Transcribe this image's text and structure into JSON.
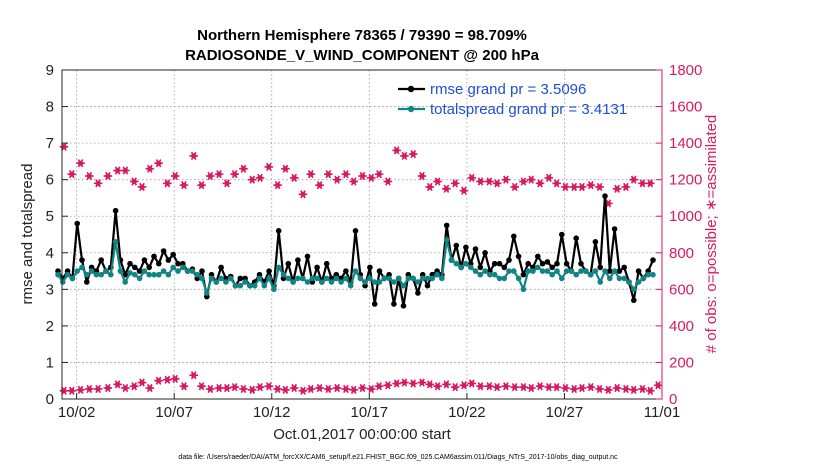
{
  "chart_data": {
    "type": "line",
    "title": "Northern Hemisphere 78365 / 79390 = 98.709%",
    "subtitle": "RADIOSONDE_V_WIND_COMPONENT @ 200 hPa",
    "xlabel": "Oct.01,2017 00:00:00 start",
    "ylabel": "rmse and totalspread",
    "y2label": "# of obs: o=possible; ∗=assimilated",
    "footer": "data file: /Users/raeder/DAI/ATM_forcXX/CAM6_setup/f.e21.FHIST_BGC.f09_025.CAM6assim.011/Diags_NTrS_2017-10/obs_diag_output.nc",
    "x_tick_labels": [
      "10/02",
      "10/07",
      "10/12",
      "10/17",
      "10/22",
      "10/27",
      "11/01"
    ],
    "x_tick_days": [
      2,
      7,
      12,
      17,
      22,
      27,
      32
    ],
    "xlim": [
      1.25,
      32
    ],
    "ylim": [
      0,
      9
    ],
    "y_ticks": [
      0,
      1,
      2,
      3,
      4,
      5,
      6,
      7,
      8,
      9
    ],
    "y2lim": [
      0,
      1800
    ],
    "y2_ticks": [
      0,
      200,
      400,
      600,
      800,
      1000,
      1200,
      1400,
      1600,
      1800
    ],
    "grid": true,
    "legend_position": "top-right",
    "series": [
      {
        "name": "rmse grand pr = 3.5096",
        "axis": "left",
        "color": "#000000",
        "values": [
          3.5,
          3.3,
          3.5,
          3.3,
          4.8,
          3.8,
          3.2,
          3.6,
          3.5,
          3.8,
          3.5,
          3.6,
          5.15,
          3.8,
          3.4,
          3.7,
          3.6,
          3.5,
          3.8,
          3.6,
          3.9,
          3.7,
          4.05,
          3.8,
          3.95,
          3.7,
          3.7,
          3.5,
          3.55,
          3.3,
          3.5,
          2.8,
          3.4,
          3.2,
          3.6,
          3.3,
          3.35,
          3.1,
          3.3,
          3.3,
          3.1,
          3.2,
          3.4,
          3.2,
          3.5,
          3.1,
          4.6,
          3.3,
          3.7,
          3.2,
          3.8,
          3.3,
          3.9,
          3.2,
          3.6,
          3.2,
          3.7,
          3.3,
          3.4,
          3.3,
          3.5,
          3.2,
          4.6,
          3.4,
          3.1,
          3.6,
          2.6,
          3.5,
          3.3,
          3.4,
          2.6,
          3.3,
          2.55,
          3.4,
          3.3,
          2.9,
          3.4,
          3.1,
          3.4,
          3.5,
          3.4,
          4.75,
          3.8,
          4.2,
          3.6,
          4.15,
          3.7,
          4.1,
          3.6,
          4.0,
          3.5,
          3.7,
          3.7,
          3.6,
          3.8,
          4.45,
          3.9,
          3.4,
          3.7,
          3.6,
          3.9,
          3.7,
          3.75,
          3.6,
          3.7,
          4.5,
          3.7,
          3.5,
          4.4,
          3.7,
          3.5,
          3.4,
          4.3,
          3.6,
          5.55,
          3.5,
          4.65,
          3.5,
          3.6,
          3.2,
          2.7,
          3.5,
          3.3,
          3.5,
          3.8
        ]
      },
      {
        "name": "totalspread grand pr = 3.4131",
        "axis": "left",
        "color": "#138484",
        "values": [
          3.4,
          3.2,
          3.4,
          3.3,
          3.5,
          3.6,
          3.4,
          3.5,
          3.4,
          3.4,
          3.5,
          3.4,
          4.3,
          3.5,
          3.2,
          3.45,
          3.4,
          3.3,
          3.5,
          3.4,
          3.4,
          3.4,
          3.5,
          3.4,
          3.6,
          3.5,
          3.6,
          3.5,
          3.5,
          3.4,
          3.3,
          2.9,
          3.3,
          3.2,
          3.3,
          3.2,
          3.3,
          3.1,
          3.1,
          3.2,
          3.1,
          3.1,
          3.3,
          3.1,
          3.3,
          3.0,
          3.6,
          3.4,
          3.3,
          3.2,
          3.3,
          3.3,
          3.2,
          3.3,
          3.3,
          3.2,
          3.3,
          3.2,
          3.3,
          3.2,
          3.3,
          3.1,
          3.5,
          3.3,
          3.2,
          3.3,
          3.2,
          3.2,
          3.3,
          3.3,
          3.2,
          3.3,
          3.1,
          3.3,
          3.3,
          3.2,
          3.3,
          3.3,
          3.3,
          3.4,
          3.3,
          4.35,
          3.8,
          3.7,
          3.6,
          3.7,
          3.6,
          3.5,
          3.4,
          3.5,
          3.4,
          3.4,
          3.3,
          3.3,
          3.5,
          3.5,
          3.3,
          3.0,
          3.5,
          3.5,
          3.6,
          3.5,
          3.5,
          3.4,
          3.5,
          3.3,
          3.5,
          3.5,
          3.4,
          3.5,
          3.5,
          3.4,
          3.5,
          3.2,
          3.5,
          3.3,
          3.5,
          3.3,
          3.3,
          3.2,
          3.0,
          3.2,
          3.3,
          3.4,
          3.4
        ]
      },
      {
        "name": "obs possible",
        "axis": "right",
        "color": "#d81b60",
        "x": [
          1.35,
          1.75,
          2.2,
          2.65,
          3.1,
          3.6,
          4.1,
          4.5,
          4.95,
          5.35,
          5.75,
          6.2,
          6.65,
          7.05,
          7.5,
          8.0,
          8.4,
          8.85,
          9.3,
          9.7,
          10.1,
          10.55,
          11.0,
          11.4,
          11.85,
          12.3,
          12.7,
          13.15,
          13.6,
          14.0,
          14.45,
          14.9,
          15.35,
          15.8,
          16.2,
          16.65,
          17.1,
          17.5,
          17.95,
          18.4,
          18.8,
          19.25,
          19.7,
          20.1,
          20.5,
          20.95,
          21.4,
          21.85,
          22.25,
          22.7,
          23.15,
          23.55,
          24.0,
          24.45,
          24.9,
          25.3,
          25.75,
          26.2,
          26.6,
          27.05,
          27.5,
          27.9,
          28.35,
          28.8,
          29.25,
          29.7,
          30.15,
          30.55,
          31.0,
          31.4
        ],
        "values": [
          1380,
          1230,
          1290,
          1220,
          1180,
          1220,
          1250,
          1250,
          1190,
          1160,
          1260,
          1290,
          1180,
          1220,
          1170,
          1330,
          1170,
          1220,
          1230,
          1180,
          1230,
          1260,
          1200,
          1210,
          1270,
          1170,
          1260,
          1210,
          1120,
          1230,
          1170,
          1230,
          1200,
          1230,
          1190,
          1220,
          1210,
          1230,
          1190,
          1360,
          1330,
          1340,
          1220,
          1160,
          1190,
          1150,
          1180,
          1140,
          1210,
          1190,
          1190,
          1180,
          1200,
          1160,
          1190,
          1200,
          1180,
          1210,
          1180,
          1160,
          1160,
          1160,
          1170,
          1160,
          1070,
          1150,
          1160,
          1200,
          1180,
          1180
        ]
      },
      {
        "name": "obs assimilated",
        "axis": "right",
        "color": "#d81b60",
        "x": [
          1.35,
          1.75,
          2.2,
          2.65,
          3.1,
          3.6,
          4.1,
          4.5,
          4.95,
          5.35,
          5.75,
          6.2,
          6.65,
          7.05,
          7.5,
          8.0,
          8.4,
          8.85,
          9.3,
          9.7,
          10.1,
          10.55,
          11.0,
          11.4,
          11.85,
          12.3,
          12.7,
          13.15,
          13.6,
          14.0,
          14.45,
          14.9,
          15.35,
          15.8,
          16.2,
          16.65,
          17.1,
          17.5,
          17.95,
          18.4,
          18.8,
          19.25,
          19.7,
          20.1,
          20.5,
          20.95,
          21.4,
          21.85,
          22.25,
          22.7,
          23.15,
          23.55,
          24.0,
          24.45,
          24.9,
          25.3,
          25.75,
          26.2,
          26.6,
          27.05,
          27.5,
          27.9,
          28.35,
          28.8,
          29.25,
          29.7,
          30.15,
          30.55,
          31.0,
          31.4,
          31.8
        ],
        "values": [
          45,
          45,
          50,
          55,
          55,
          60,
          80,
          60,
          70,
          90,
          60,
          100,
          105,
          110,
          70,
          130,
          70,
          55,
          60,
          60,
          65,
          55,
          50,
          65,
          70,
          55,
          50,
          60,
          45,
          55,
          60,
          55,
          60,
          55,
          50,
          60,
          55,
          70,
          75,
          85,
          90,
          85,
          90,
          80,
          70,
          80,
          65,
          75,
          85,
          70,
          70,
          65,
          70,
          65,
          65,
          60,
          70,
          65,
          65,
          60,
          55,
          60,
          65,
          55,
          50,
          60,
          55,
          50,
          55,
          45,
          75
        ]
      }
    ]
  }
}
